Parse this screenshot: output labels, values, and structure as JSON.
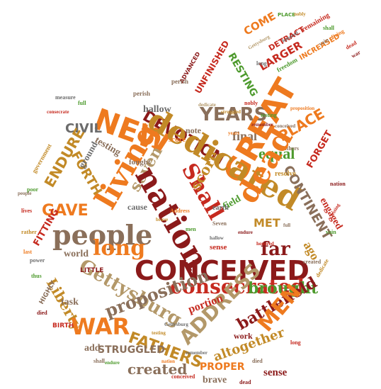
{
  "colors": {
    "dark_red": "#8b1a1a",
    "red": "#c62a1f",
    "orange": "#ee7a1f",
    "gold": "#c28a27",
    "tan": "#b39869",
    "brown": "#8a6f5a",
    "green": "#4d9a2d",
    "gray": "#6c6c6c"
  },
  "words": {
    "new": "NEW",
    "dedicated": "dedicated",
    "devotion": "DEVOTION",
    "years": "YEARS",
    "great": "GREAT",
    "living": "living",
    "nation": "nation",
    "shall": "Shall",
    "dead": "dead",
    "people": "people",
    "long": "long",
    "conceived": "CONCEIVED",
    "consecrated": "consecrated",
    "far": "far",
    "gettysburg": "Gettysburg",
    "address": "ADDRESS",
    "brought": "brought",
    "proposition": "proposition",
    "war": "WAR",
    "fathers": "FATHERS",
    "men": "MEN",
    "continent": "CONTINENT",
    "engaged": "engaged",
    "gave": "GAVE",
    "forth": "FORTH",
    "endure": "ENDURE",
    "civil": "CIVIL",
    "liberty": "Liberty",
    "fitting": "FITTING",
    "battlefield": "battlefield",
    "struggled": "STRUGGLED",
    "created": "created",
    "proper": "PROPER",
    "altogether": "altogether",
    "sense": "sense",
    "brave": "brave",
    "portion": "portion",
    "equal": "equal",
    "final": "final",
    "place": "PLACE",
    "forget": "FORGET",
    "score": "score",
    "seven": "seven",
    "testing": "testing",
    "hallow": "hallow",
    "world": "world",
    "little": "LITTLE",
    "task": "task",
    "come": "COME",
    "resting": "RESTING",
    "larger": "LARGER",
    "detract": "DETRACT",
    "unfinished": "UNFINISHED",
    "advanced": "ADVANCED",
    "increased": "INCREASED",
    "remaining": "remaining",
    "freedom": "freedom",
    "perish": "perish",
    "met": "MET",
    "ground": "ground",
    "field": "field",
    "add": "add",
    "fought": "fought",
    "note": "note",
    "earth": "earth",
    "nobly": "nobly",
    "work": "work",
    "ago": "ago",
    "cause": "cause",
    "lives": "lives",
    "measure": "measure",
    "highly": "HIGHLY",
    "birth": "BIRTH",
    "government": "government",
    "resolve": "resolve",
    "poor": "poor",
    "power": "power",
    "rather": "rather",
    "living_small": "living",
    "dedicate": "dedicate",
    "nation_small": "nation",
    "war_small": "war",
    "long_small": "long",
    "shall_small": "shall",
    "dead_small": "dead",
    "vain": "vain",
    "honored": "honored",
    "thus": "thus",
    "full": "full",
    "last": "last",
    "died": "died",
    "gettysburg_small": "Gettysburg",
    "consecrate": "consecrate",
    "remember": "remember",
    "people_small": "people",
    "fathers_small": "fathers",
    "conceived_small": "conceived",
    "testing_small": "testing",
    "proposition_small": "proposition",
    "endure_small": "endure",
    "hallow_small": "hallow",
    "struggled_small": "struggled",
    "sense_small": "sense",
    "men_small": "men",
    "brave_small": "brave",
    "address_small": "Address",
    "seven_small": "Seven",
    "years_small": "years"
  }
}
